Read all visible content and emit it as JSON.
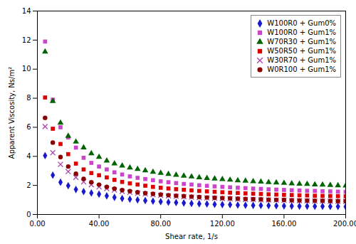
{
  "chart_data": {
    "type": "scatter",
    "xlabel": "Shear rate, 1/s",
    "ylabel": "Apparent Viscosity, Ns/m²",
    "x": [
      5,
      10,
      15,
      20,
      25,
      30,
      35,
      40,
      45,
      50,
      55,
      60,
      65,
      70,
      75,
      80,
      85,
      90,
      95,
      100,
      105,
      110,
      115,
      120,
      125,
      130,
      135,
      140,
      145,
      150,
      155,
      160,
      165,
      170,
      175,
      180,
      185,
      190,
      195,
      200
    ],
    "series": [
      {
        "name": "W100R0 + Gum0%",
        "color": "#1A1ACD",
        "marker": "diamond",
        "values": [
          4.05,
          2.7,
          2.22,
          1.98,
          1.72,
          1.58,
          1.48,
          1.4,
          1.28,
          1.18,
          1.1,
          1.05,
          1.0,
          0.96,
          0.92,
          0.88,
          0.84,
          0.82,
          0.79,
          0.76,
          0.74,
          0.72,
          0.7,
          0.68,
          0.67,
          0.65,
          0.64,
          0.63,
          0.62,
          0.61,
          0.6,
          0.59,
          0.58,
          0.57,
          0.57,
          0.56,
          0.56,
          0.55,
          0.55,
          0.54
        ]
      },
      {
        "name": "W100R0 + Gum1%",
        "color": "#CC44CC",
        "marker": "square",
        "values": [
          11.9,
          7.9,
          6.0,
          5.3,
          4.6,
          3.9,
          3.55,
          3.3,
          3.1,
          2.9,
          2.75,
          2.62,
          2.52,
          2.44,
          2.36,
          2.28,
          2.22,
          2.16,
          2.1,
          2.06,
          2.01,
          1.97,
          1.93,
          1.9,
          1.87,
          1.84,
          1.81,
          1.78,
          1.76,
          1.73,
          1.71,
          1.69,
          1.67,
          1.65,
          1.63,
          1.62,
          1.6,
          1.59,
          1.57,
          1.56
        ]
      },
      {
        "name": "W70R30 + Gum1%",
        "color": "#006400",
        "marker": "triangle",
        "values": [
          11.2,
          7.8,
          6.3,
          5.4,
          5.0,
          4.6,
          4.2,
          3.95,
          3.7,
          3.5,
          3.35,
          3.22,
          3.12,
          3.02,
          2.93,
          2.85,
          2.78,
          2.72,
          2.66,
          2.6,
          2.55,
          2.5,
          2.46,
          2.42,
          2.38,
          2.34,
          2.31,
          2.28,
          2.25,
          2.22,
          2.19,
          2.16,
          2.13,
          2.11,
          2.09,
          2.06,
          2.04,
          2.02,
          2.0,
          1.98
        ]
      },
      {
        "name": "W50R50 + Gum1%",
        "color": "#DD0000",
        "marker": "square",
        "values": [
          8.05,
          5.9,
          4.85,
          4.15,
          3.5,
          3.1,
          2.85,
          2.7,
          2.55,
          2.38,
          2.24,
          2.14,
          2.06,
          1.98,
          1.9,
          1.84,
          1.79,
          1.74,
          1.7,
          1.66,
          1.62,
          1.59,
          1.56,
          1.53,
          1.5,
          1.48,
          1.45,
          1.43,
          1.41,
          1.39,
          1.37,
          1.35,
          1.34,
          1.32,
          1.31,
          1.29,
          1.28,
          1.27,
          1.26,
          1.25
        ]
      },
      {
        "name": "W30R70 + Gum1%",
        "color": "#AA44AA",
        "marker": "x",
        "values": [
          6.05,
          4.25,
          3.45,
          2.95,
          2.55,
          2.25,
          2.05,
          1.9,
          1.78,
          1.68,
          1.59,
          1.52,
          1.46,
          1.41,
          1.37,
          1.32,
          1.28,
          1.25,
          1.22,
          1.19,
          1.16,
          1.14,
          1.12,
          1.1,
          1.08,
          1.06,
          1.04,
          1.03,
          1.01,
          1.0,
          0.99,
          0.97,
          0.96,
          0.95,
          0.94,
          0.93,
          0.92,
          0.91,
          0.9,
          0.9
        ]
      },
      {
        "name": "W0R100 + Gum1%",
        "color": "#8B0000",
        "marker": "circle",
        "values": [
          6.65,
          4.95,
          3.95,
          3.3,
          2.8,
          2.45,
          2.22,
          2.05,
          1.9,
          1.78,
          1.68,
          1.6,
          1.53,
          1.47,
          1.42,
          1.37,
          1.33,
          1.29,
          1.26,
          1.23,
          1.2,
          1.17,
          1.15,
          1.13,
          1.11,
          1.09,
          1.07,
          1.05,
          1.04,
          1.02,
          1.01,
          1.0,
          0.98,
          0.97,
          0.96,
          0.95,
          0.94,
          0.93,
          0.92,
          0.92
        ]
      }
    ],
    "xlim": [
      0,
      200
    ],
    "ylim": [
      0,
      14
    ],
    "xticks": [
      {
        "value": 0,
        "label": "0.00"
      },
      {
        "value": 40,
        "label": "40.00"
      },
      {
        "value": 80,
        "label": "80.00"
      },
      {
        "value": 120,
        "label": "120.00"
      },
      {
        "value": 160,
        "label": "160.00"
      },
      {
        "value": 200,
        "label": "200.00"
      }
    ],
    "yticks": [
      0,
      2,
      4,
      6,
      8,
      10,
      12,
      14
    ],
    "grid": false,
    "legend": "upper right"
  }
}
